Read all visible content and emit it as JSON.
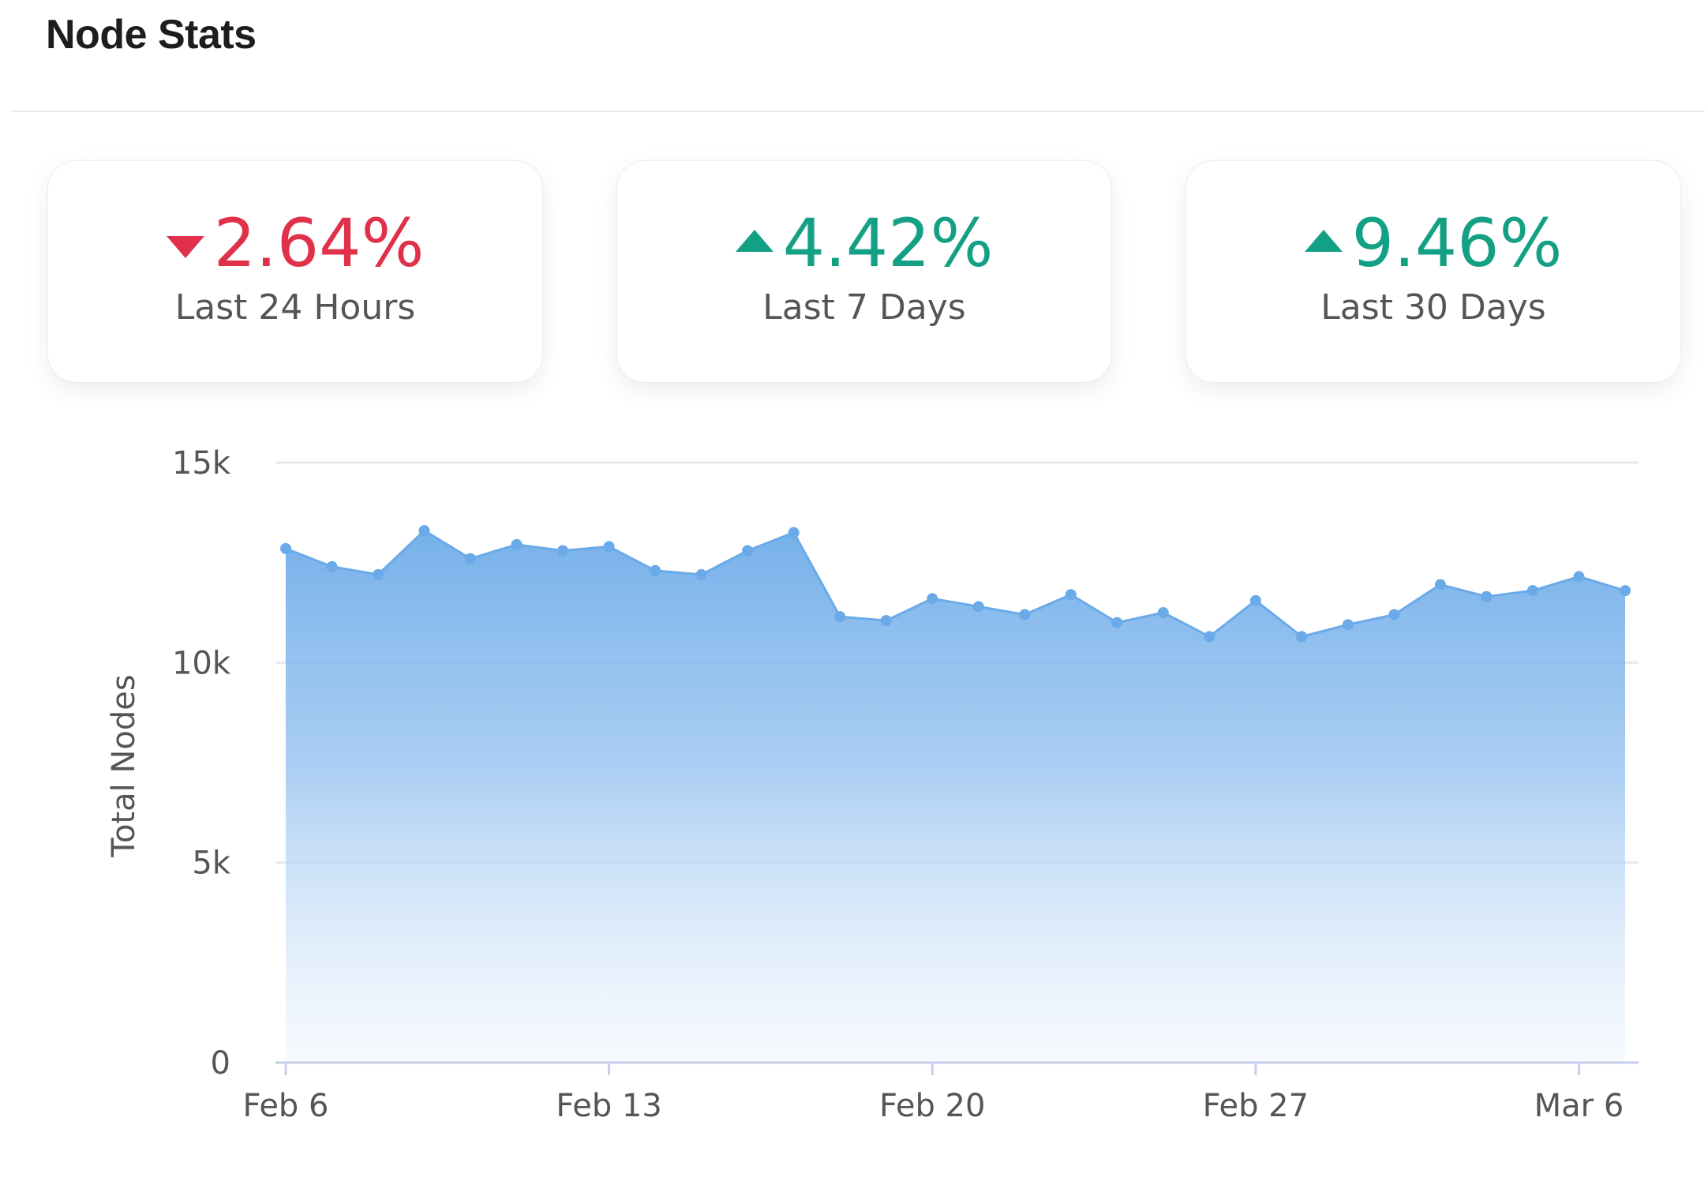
{
  "header": {
    "title": "Node Stats"
  },
  "stats": [
    {
      "value": "2.64%",
      "label": "Last 24 Hours",
      "direction": "down",
      "icon": "caret-down-icon",
      "color": "#e0304a"
    },
    {
      "value": "4.42%",
      "label": "Last 7 Days",
      "direction": "up",
      "icon": "caret-up-icon",
      "color": "#14a085"
    },
    {
      "value": "9.46%",
      "label": "Last 30 Days",
      "direction": "up",
      "icon": "caret-up-icon",
      "color": "#14a085"
    }
  ],
  "chart_data": {
    "type": "area",
    "ylabel": "Total Nodes",
    "xlabel": "",
    "ylim": [
      0,
      15000
    ],
    "y_ticks": [
      0,
      5000,
      10000,
      15000
    ],
    "y_tick_labels": [
      "0",
      "5k",
      "10k",
      "15k"
    ],
    "x_tick_dates": [
      "2023-02-06",
      "2023-02-13",
      "2023-02-20",
      "2023-02-27",
      "2023-03-06"
    ],
    "x_tick_labels": [
      "Feb 6",
      "Feb 13",
      "Feb 20",
      "Feb 27",
      "Mar 6"
    ],
    "grid": true,
    "legend": "none",
    "color": "#6aaae8",
    "series": [
      {
        "x": [
          "2023-02-06",
          "2023-02-07",
          "2023-02-08",
          "2023-02-09",
          "2023-02-10",
          "2023-02-11",
          "2023-02-12",
          "2023-02-13",
          "2023-02-14",
          "2023-02-15",
          "2023-02-16",
          "2023-02-17",
          "2023-02-18",
          "2023-02-19",
          "2023-02-20",
          "2023-02-21",
          "2023-02-22",
          "2023-02-23",
          "2023-02-24",
          "2023-02-25",
          "2023-02-26",
          "2023-02-27",
          "2023-02-28",
          "2023-03-01",
          "2023-03-02",
          "2023-03-03",
          "2023-03-04",
          "2023-03-05",
          "2023-03-06",
          "2023-03-07"
        ],
        "values": [
          12850,
          12400,
          12200,
          13300,
          12600,
          12950,
          12800,
          12900,
          12300,
          12200,
          12800,
          13250,
          11150,
          11050,
          11600,
          11400,
          11200,
          11700,
          11000,
          11250,
          10650,
          11550,
          10650,
          10950,
          11200,
          11950,
          11650,
          11800,
          12150,
          11800
        ]
      }
    ]
  }
}
